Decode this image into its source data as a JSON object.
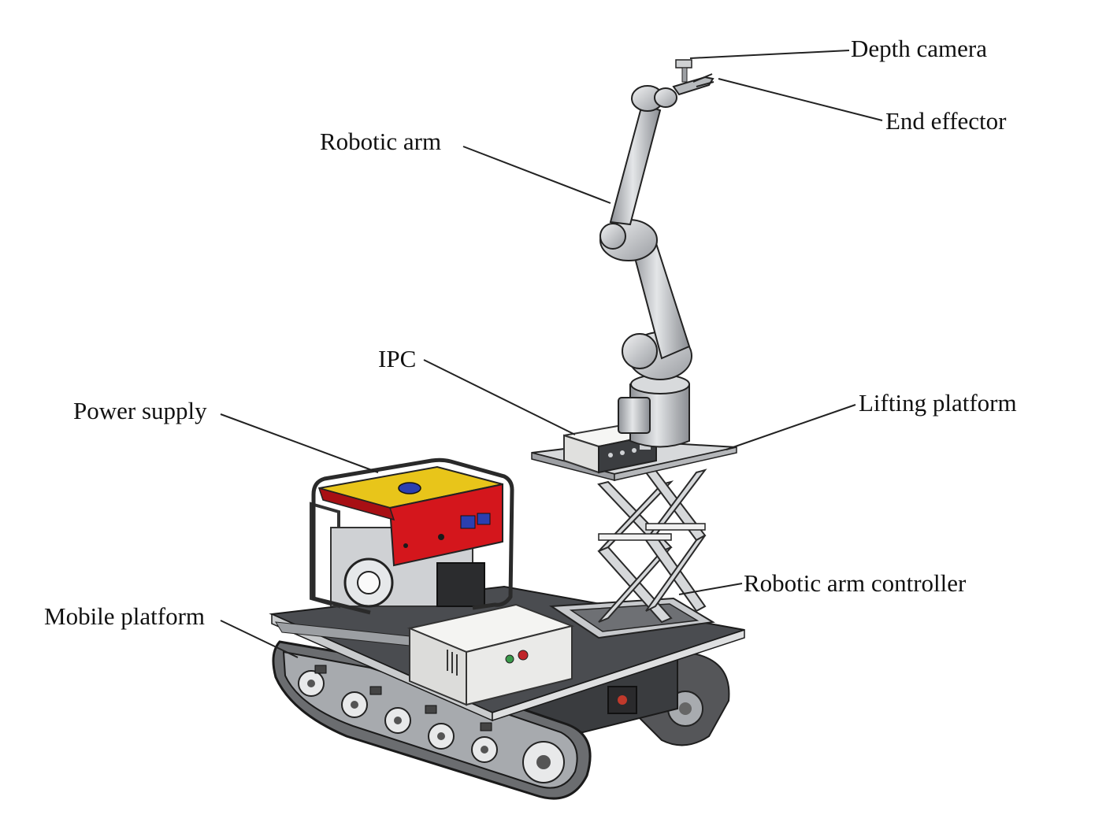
{
  "labels": {
    "depth_camera": "Depth camera",
    "end_effector": "End effector",
    "robotic_arm": "Robotic arm",
    "ipc": "IPC",
    "lifting_platform": "Lifting platform",
    "power_supply": "Power supply",
    "robotic_arm_controller": "Robotic arm controller",
    "mobile_platform": "Mobile platform"
  },
  "colors": {
    "generator_red": "#d4161c",
    "generator_yellow": "#e8c51a",
    "generator_blue": "#2b3fb0",
    "metal_gray": "#b9bcc0",
    "dark_deck": "#3b3d40",
    "box_white": "#eeeeec"
  }
}
